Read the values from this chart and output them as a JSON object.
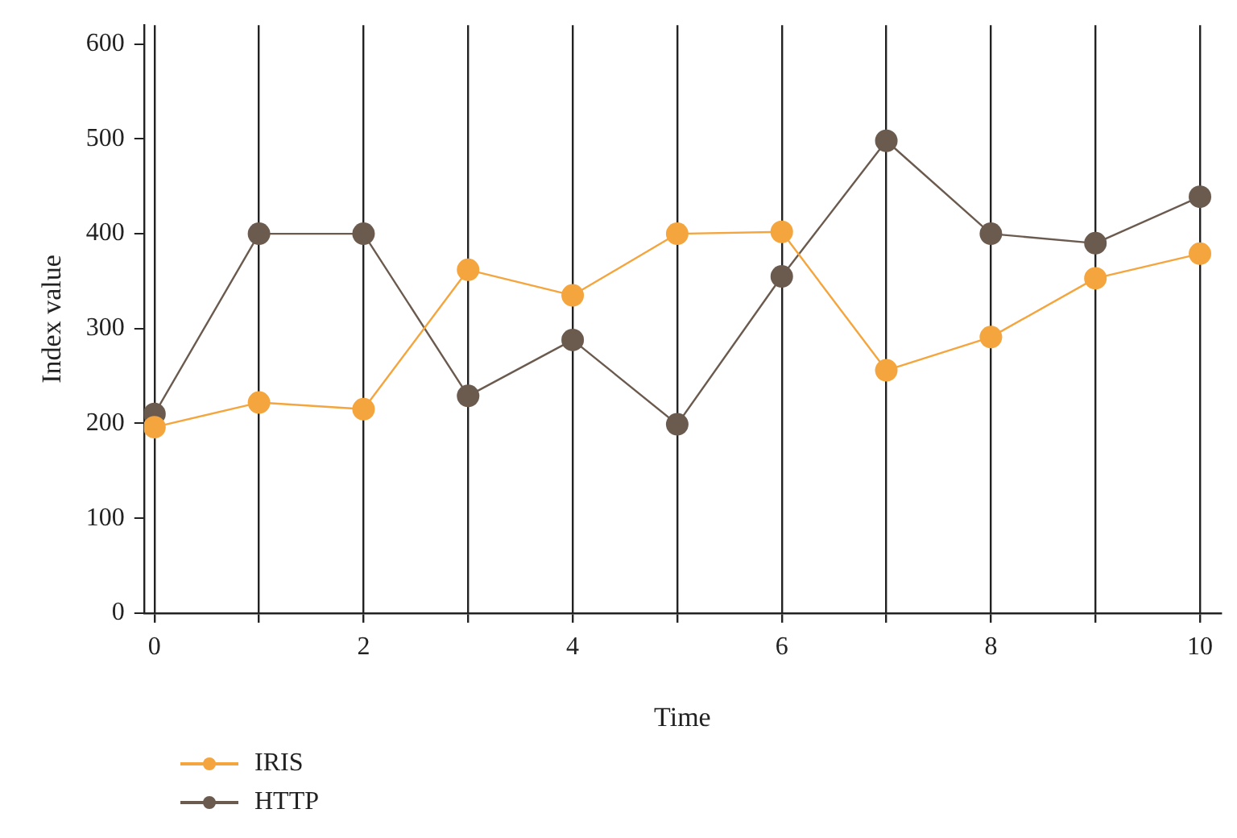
{
  "chart_data": {
    "type": "line",
    "xlabel": "Time",
    "ylabel": "Index value",
    "x": [
      0,
      1,
      2,
      3,
      4,
      5,
      6,
      7,
      8,
      9,
      10
    ],
    "series": [
      {
        "name": "IRIS",
        "color": "#f4a53e",
        "values": [
          196,
          222,
          215,
          362,
          335,
          400,
          402,
          256,
          291,
          353,
          379
        ]
      },
      {
        "name": "HTTP",
        "color": "#6b5a4e",
        "values": [
          210,
          400,
          400,
          229,
          288,
          199,
          355,
          498,
          400,
          390,
          439
        ]
      }
    ],
    "xlim": [
      -0.1,
      10.2
    ],
    "ylim": [
      0,
      620
    ],
    "xticks": [
      0,
      {
        "value": 1,
        "label": null
      },
      2,
      {
        "value": 3,
        "label": null
      },
      4,
      {
        "value": 5,
        "label": null
      },
      6,
      {
        "value": 7,
        "label": null
      },
      8,
      {
        "value": 9,
        "label": null
      },
      10
    ],
    "yticks": [
      0,
      100,
      200,
      300,
      400,
      500,
      600
    ],
    "grid": "x",
    "legend": "bottom left",
    "marker": "circle",
    "line_style": "solid"
  }
}
